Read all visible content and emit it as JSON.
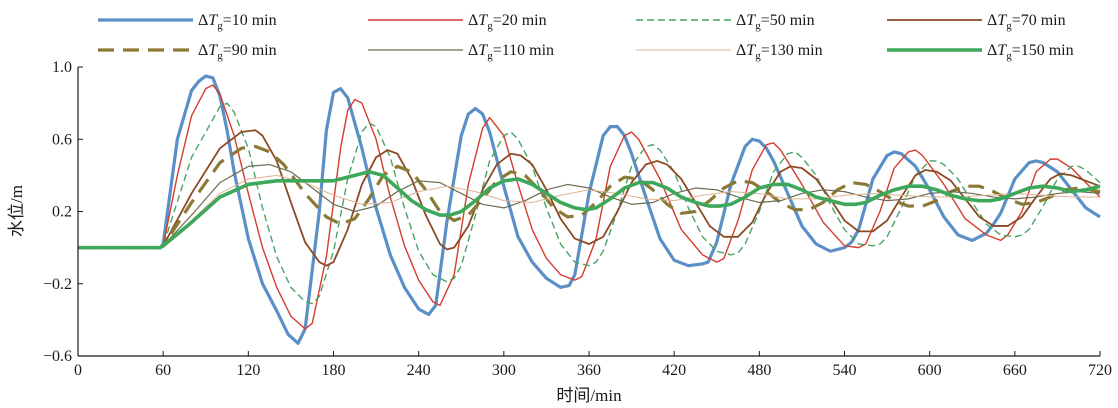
{
  "chart_data": {
    "type": "line",
    "xlabel": "时间/min",
    "ylabel": "水位/m",
    "xlim": [
      0,
      720
    ],
    "ylim": [
      -0.6,
      1.0
    ],
    "x_ticks": [
      0,
      60,
      120,
      180,
      240,
      300,
      360,
      420,
      480,
      540,
      600,
      660,
      720
    ],
    "x_tick_labels": [
      "0",
      "60",
      "120",
      "180",
      "240",
      "300",
      "360",
      "420",
      "480",
      "540",
      "600",
      "660",
      "720"
    ],
    "y_ticks": [
      -0.6,
      -0.2,
      0.2,
      0.6,
      1.0
    ],
    "y_tick_labels": [
      "−0.6",
      "−0.2",
      "0.2",
      "0.6",
      "1.0"
    ],
    "grid": false,
    "legend_position": "top",
    "series": [
      {
        "name": "ΔTg=10 min",
        "color": "#5b8fc7",
        "style": "solid",
        "x": [
          0,
          58,
          60,
          70,
          80,
          85,
          90,
          95,
          100,
          105,
          110,
          120,
          130,
          140,
          148,
          155,
          160,
          170,
          175,
          180,
          185,
          190,
          200,
          210,
          220,
          230,
          240,
          247,
          252,
          260,
          270,
          275,
          280,
          285,
          290,
          300,
          310,
          320,
          330,
          340,
          346,
          350,
          360,
          370,
          375,
          380,
          385,
          390,
          400,
          410,
          420,
          430,
          440,
          444,
          450,
          460,
          470,
          475,
          480,
          485,
          490,
          500,
          510,
          520,
          530,
          540,
          545,
          550,
          560,
          570,
          575,
          580,
          590,
          600,
          610,
          620,
          630,
          640,
          645,
          650,
          660,
          670,
          675,
          680,
          690,
          700,
          710,
          720
        ],
        "y": [
          0.0,
          0.0,
          0.02,
          0.6,
          0.87,
          0.92,
          0.95,
          0.94,
          0.84,
          0.65,
          0.42,
          0.05,
          -0.2,
          -0.35,
          -0.48,
          -0.53,
          -0.45,
          0.2,
          0.65,
          0.86,
          0.88,
          0.83,
          0.55,
          0.22,
          -0.04,
          -0.22,
          -0.34,
          -0.37,
          -0.32,
          0.15,
          0.62,
          0.74,
          0.77,
          0.74,
          0.64,
          0.34,
          0.06,
          -0.08,
          -0.17,
          -0.22,
          -0.21,
          -0.15,
          0.3,
          0.62,
          0.67,
          0.67,
          0.62,
          0.52,
          0.28,
          0.05,
          -0.07,
          -0.1,
          -0.09,
          -0.08,
          0.03,
          0.35,
          0.56,
          0.6,
          0.59,
          0.55,
          0.48,
          0.3,
          0.12,
          0.02,
          -0.02,
          0.0,
          0.03,
          0.1,
          0.38,
          0.51,
          0.53,
          0.52,
          0.45,
          0.32,
          0.17,
          0.07,
          0.04,
          0.08,
          0.13,
          0.19,
          0.38,
          0.47,
          0.48,
          0.47,
          0.42,
          0.32,
          0.22,
          0.17
        ]
      },
      {
        "name": "ΔTg=20 min",
        "color": "#d43c2e",
        "style": "solid",
        "x": [
          0,
          58,
          60,
          70,
          80,
          90,
          95,
          100,
          110,
          120,
          130,
          140,
          150,
          160,
          165,
          175,
          185,
          190,
          195,
          200,
          210,
          220,
          230,
          240,
          250,
          255,
          265,
          275,
          285,
          290,
          300,
          310,
          320,
          330,
          340,
          350,
          355,
          365,
          375,
          385,
          390,
          395,
          410,
          425,
          440,
          450,
          455,
          465,
          475,
          485,
          490,
          495,
          510,
          525,
          540,
          550,
          555,
          565,
          575,
          585,
          590,
          595,
          610,
          625,
          640,
          650,
          655,
          665,
          675,
          685,
          690,
          700,
          710,
          720
        ],
        "y": [
          0.0,
          0.0,
          0.01,
          0.4,
          0.73,
          0.88,
          0.9,
          0.85,
          0.62,
          0.3,
          0.0,
          -0.22,
          -0.38,
          -0.45,
          -0.42,
          -0.05,
          0.55,
          0.76,
          0.82,
          0.8,
          0.6,
          0.28,
          0.01,
          -0.18,
          -0.3,
          -0.32,
          -0.15,
          0.35,
          0.66,
          0.72,
          0.62,
          0.35,
          0.1,
          -0.06,
          -0.15,
          -0.18,
          -0.16,
          0.05,
          0.45,
          0.62,
          0.64,
          0.6,
          0.38,
          0.1,
          -0.04,
          -0.08,
          -0.06,
          0.15,
          0.43,
          0.57,
          0.58,
          0.54,
          0.35,
          0.14,
          0.01,
          0.0,
          0.02,
          0.2,
          0.44,
          0.53,
          0.54,
          0.51,
          0.35,
          0.16,
          0.07,
          0.04,
          0.07,
          0.2,
          0.42,
          0.49,
          0.49,
          0.44,
          0.36,
          0.28
        ]
      },
      {
        "name": "ΔTg=50 min",
        "color": "#4aa363",
        "style": "dashed",
        "x": [
          0,
          58,
          60,
          80,
          100,
          105,
          110,
          120,
          130,
          140,
          150,
          160,
          165,
          170,
          180,
          190,
          200,
          205,
          210,
          220,
          230,
          240,
          250,
          260,
          265,
          270,
          280,
          290,
          300,
          305,
          310,
          320,
          330,
          340,
          350,
          360,
          365,
          370,
          380,
          390,
          400,
          405,
          410,
          420,
          430,
          440,
          450,
          460,
          465,
          470,
          480,
          490,
          500,
          505,
          510,
          520,
          530,
          540,
          550,
          560,
          565,
          570,
          580,
          590,
          600,
          605,
          610,
          620,
          630,
          640,
          650,
          660,
          665,
          670,
          680,
          690,
          700,
          705,
          710,
          720
        ],
        "y": [
          0.0,
          0.0,
          0.01,
          0.5,
          0.78,
          0.8,
          0.75,
          0.55,
          0.22,
          -0.05,
          -0.22,
          -0.3,
          -0.31,
          -0.27,
          -0.02,
          0.38,
          0.64,
          0.69,
          0.67,
          0.5,
          0.22,
          -0.02,
          -0.15,
          -0.19,
          -0.17,
          -0.1,
          0.18,
          0.48,
          0.62,
          0.64,
          0.6,
          0.45,
          0.22,
          0.02,
          -0.08,
          -0.1,
          -0.08,
          -0.02,
          0.2,
          0.45,
          0.56,
          0.57,
          0.54,
          0.42,
          0.22,
          0.06,
          -0.02,
          -0.04,
          -0.03,
          0.02,
          0.2,
          0.42,
          0.52,
          0.53,
          0.5,
          0.4,
          0.24,
          0.1,
          0.02,
          0.01,
          0.02,
          0.06,
          0.22,
          0.4,
          0.48,
          0.48,
          0.46,
          0.38,
          0.25,
          0.13,
          0.07,
          0.06,
          0.07,
          0.1,
          0.23,
          0.38,
          0.45,
          0.45,
          0.43,
          0.36
        ]
      },
      {
        "name": "ΔTg=70 min",
        "color": "#8b4a25",
        "style": "solid",
        "x": [
          0,
          58,
          60,
          80,
          100,
          115,
          125,
          130,
          140,
          150,
          160,
          170,
          175,
          180,
          190,
          200,
          210,
          218,
          225,
          235,
          245,
          255,
          260,
          265,
          275,
          285,
          295,
          305,
          312,
          320,
          330,
          340,
          350,
          360,
          370,
          380,
          390,
          400,
          408,
          415,
          425,
          435,
          445,
          455,
          465,
          475,
          485,
          495,
          502,
          510,
          520,
          530,
          540,
          550,
          560,
          570,
          580,
          590,
          597,
          605,
          615,
          625,
          635,
          645,
          655,
          665,
          675,
          685,
          692,
          700,
          710,
          720
        ],
        "y": [
          0.0,
          0.0,
          0.01,
          0.3,
          0.55,
          0.64,
          0.65,
          0.62,
          0.48,
          0.25,
          0.03,
          -0.08,
          -0.1,
          -0.08,
          0.1,
          0.35,
          0.5,
          0.54,
          0.52,
          0.38,
          0.18,
          0.02,
          -0.01,
          0.0,
          0.12,
          0.32,
          0.46,
          0.52,
          0.51,
          0.46,
          0.32,
          0.16,
          0.05,
          0.02,
          0.06,
          0.2,
          0.36,
          0.46,
          0.48,
          0.46,
          0.38,
          0.25,
          0.12,
          0.06,
          0.06,
          0.14,
          0.3,
          0.42,
          0.45,
          0.44,
          0.38,
          0.27,
          0.15,
          0.09,
          0.09,
          0.15,
          0.28,
          0.4,
          0.43,
          0.42,
          0.37,
          0.27,
          0.17,
          0.12,
          0.12,
          0.17,
          0.28,
          0.38,
          0.41,
          0.4,
          0.37,
          0.34
        ]
      },
      {
        "name": "ΔTg=90 min",
        "color": "#8a7a35",
        "style": "longdash",
        "x": [
          0,
          58,
          60,
          80,
          100,
          115,
          125,
          135,
          145,
          160,
          175,
          185,
          195,
          205,
          215,
          225,
          235,
          245,
          255,
          265,
          275,
          285,
          295,
          305,
          315,
          325,
          335,
          345,
          355,
          365,
          375,
          385,
          395,
          405,
          415,
          425,
          435,
          445,
          455,
          465,
          475,
          485,
          495,
          505,
          515,
          525,
          535,
          545,
          555,
          565,
          575,
          585,
          595,
          605,
          615,
          625,
          635,
          645,
          655,
          665,
          675,
          685,
          695,
          705,
          720
        ],
        "y": [
          0.0,
          0.0,
          0.01,
          0.25,
          0.47,
          0.55,
          0.56,
          0.53,
          0.46,
          0.3,
          0.17,
          0.13,
          0.16,
          0.27,
          0.4,
          0.45,
          0.42,
          0.32,
          0.2,
          0.15,
          0.18,
          0.27,
          0.37,
          0.42,
          0.4,
          0.32,
          0.22,
          0.17,
          0.18,
          0.25,
          0.34,
          0.39,
          0.38,
          0.32,
          0.24,
          0.19,
          0.2,
          0.26,
          0.33,
          0.37,
          0.36,
          0.31,
          0.25,
          0.21,
          0.21,
          0.25,
          0.32,
          0.36,
          0.35,
          0.31,
          0.26,
          0.23,
          0.23,
          0.26,
          0.31,
          0.34,
          0.34,
          0.31,
          0.27,
          0.24,
          0.25,
          0.28,
          0.32,
          0.33,
          0.31
        ]
      },
      {
        "name": "ΔTg=110 min",
        "color": "#6b6b50",
        "style": "solid",
        "x": [
          0,
          58,
          60,
          80,
          100,
          120,
          135,
          150,
          165,
          180,
          195,
          210,
          225,
          240,
          255,
          270,
          285,
          300,
          315,
          330,
          345,
          360,
          375,
          390,
          405,
          420,
          435,
          450,
          465,
          480,
          495,
          510,
          525,
          540,
          555,
          570,
          585,
          600,
          615,
          630,
          645,
          660,
          675,
          690,
          705,
          720
        ],
        "y": [
          0.0,
          0.0,
          0.01,
          0.18,
          0.36,
          0.45,
          0.46,
          0.42,
          0.33,
          0.24,
          0.2,
          0.23,
          0.31,
          0.37,
          0.36,
          0.3,
          0.24,
          0.22,
          0.26,
          0.32,
          0.35,
          0.33,
          0.28,
          0.24,
          0.25,
          0.3,
          0.33,
          0.32,
          0.28,
          0.25,
          0.26,
          0.3,
          0.32,
          0.31,
          0.28,
          0.26,
          0.27,
          0.3,
          0.31,
          0.3,
          0.28,
          0.27,
          0.28,
          0.3,
          0.31,
          0.3
        ]
      },
      {
        "name": "ΔTg=130 min",
        "color": "#e0b391",
        "style": "solid",
        "x": [
          0,
          58,
          60,
          80,
          100,
          120,
          140,
          160,
          180,
          200,
          220,
          240,
          260,
          280,
          300,
          320,
          340,
          360,
          380,
          400,
          420,
          440,
          460,
          480,
          500,
          520,
          540,
          560,
          580,
          600,
          620,
          640,
          660,
          680,
          700,
          720
        ],
        "y": [
          0.0,
          0.0,
          0.01,
          0.15,
          0.3,
          0.38,
          0.4,
          0.36,
          0.29,
          0.24,
          0.25,
          0.31,
          0.34,
          0.31,
          0.26,
          0.25,
          0.29,
          0.32,
          0.3,
          0.27,
          0.26,
          0.29,
          0.31,
          0.3,
          0.27,
          0.27,
          0.29,
          0.3,
          0.29,
          0.28,
          0.28,
          0.29,
          0.3,
          0.29,
          0.28,
          0.28
        ]
      },
      {
        "name": "ΔTg=150 min",
        "color": "#3ea85a",
        "style": "thick",
        "x": [
          0,
          58,
          60,
          80,
          100,
          120,
          140,
          160,
          180,
          195,
          205,
          215,
          225,
          235,
          245,
          255,
          262,
          270,
          280,
          290,
          300,
          310,
          320,
          330,
          340,
          350,
          358,
          365,
          375,
          385,
          395,
          405,
          415,
          425,
          435,
          445,
          452,
          460,
          470,
          480,
          490,
          500,
          510,
          520,
          530,
          540,
          548,
          555,
          565,
          575,
          585,
          595,
          605,
          615,
          625,
          635,
          643,
          650,
          660,
          670,
          680,
          690,
          700,
          710,
          720
        ],
        "y": [
          0.0,
          0.0,
          0.01,
          0.14,
          0.28,
          0.35,
          0.37,
          0.37,
          0.37,
          0.4,
          0.42,
          0.4,
          0.33,
          0.26,
          0.21,
          0.18,
          0.18,
          0.2,
          0.26,
          0.33,
          0.37,
          0.38,
          0.35,
          0.3,
          0.25,
          0.22,
          0.21,
          0.22,
          0.27,
          0.33,
          0.36,
          0.36,
          0.33,
          0.28,
          0.25,
          0.23,
          0.23,
          0.24,
          0.28,
          0.33,
          0.35,
          0.35,
          0.32,
          0.28,
          0.26,
          0.24,
          0.24,
          0.25,
          0.29,
          0.32,
          0.34,
          0.34,
          0.32,
          0.29,
          0.27,
          0.26,
          0.26,
          0.27,
          0.3,
          0.33,
          0.34,
          0.33,
          0.31,
          0.32,
          0.34
        ]
      }
    ]
  }
}
